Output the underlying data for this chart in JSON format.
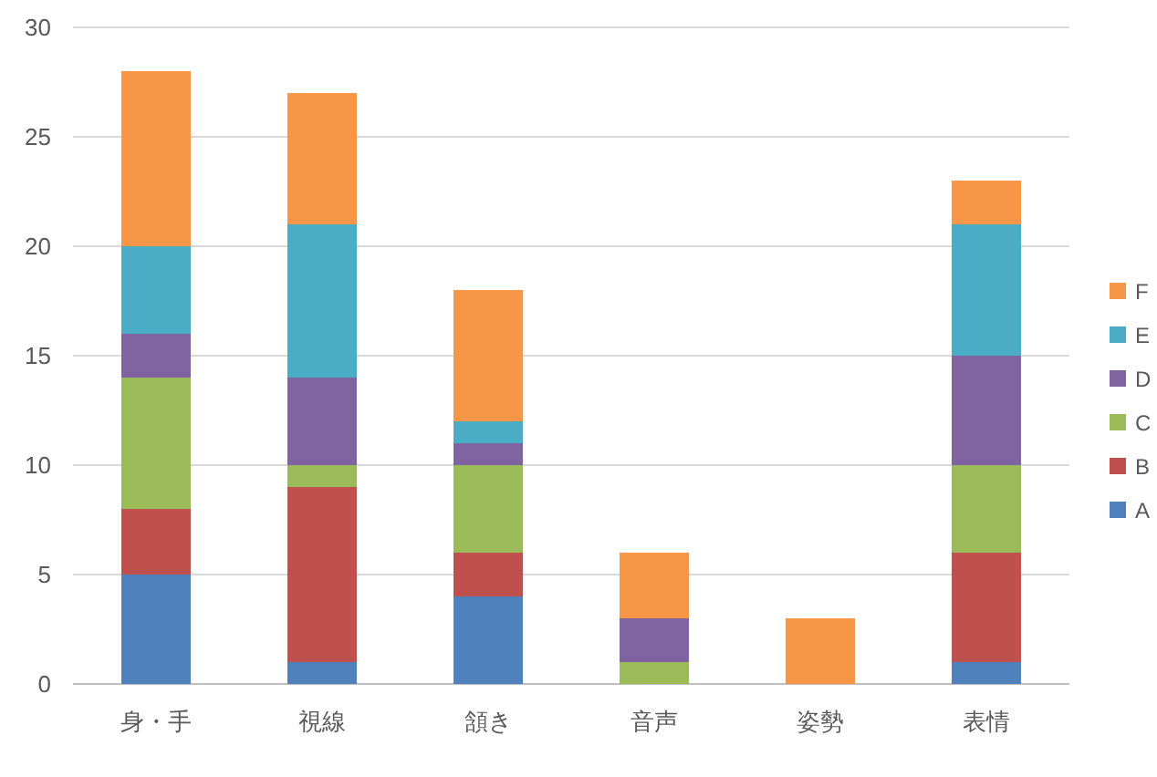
{
  "chart_data": {
    "type": "bar",
    "stacked": true,
    "categories": [
      "身・手",
      "視線",
      "頷き",
      "音声",
      "姿勢",
      "表情"
    ],
    "series": [
      {
        "name": "A",
        "color": "#4f81bd",
        "values": [
          5,
          1,
          4,
          0,
          0,
          1
        ]
      },
      {
        "name": "B",
        "color": "#c0504d",
        "values": [
          3,
          8,
          2,
          0,
          0,
          5
        ]
      },
      {
        "name": "C",
        "color": "#9bbb59",
        "values": [
          6,
          1,
          4,
          1,
          0,
          4
        ]
      },
      {
        "name": "D",
        "color": "#8064a2",
        "values": [
          2,
          4,
          1,
          2,
          0,
          5
        ]
      },
      {
        "name": "E",
        "color": "#4bacc6",
        "values": [
          4,
          7,
          1,
          0,
          0,
          6
        ]
      },
      {
        "name": "F",
        "color": "#f79646",
        "values": [
          8,
          6,
          6,
          3,
          3,
          2
        ]
      }
    ],
    "ylim": [
      0,
      30
    ],
    "yticks": [
      0,
      5,
      10,
      15,
      20,
      25,
      30
    ],
    "grid": "y",
    "legend": "right"
  }
}
